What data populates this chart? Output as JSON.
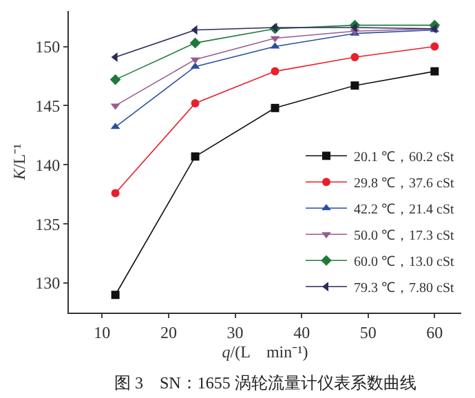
{
  "chart_data": {
    "type": "line",
    "xlabel": "q/(L　min⁻¹)",
    "ylabel": "K/L⁻¹",
    "annotations": [
      "图 3　SN：1655 涡轮流量计仪表系数曲线"
    ],
    "x": [
      12,
      24,
      36,
      48,
      60
    ],
    "xlim": [
      5,
      64
    ],
    "xticks": [
      10,
      20,
      30,
      40,
      50,
      60
    ],
    "ylim": [
      127.5,
      153
    ],
    "yticks": [
      130,
      135,
      140,
      145,
      150
    ],
    "legend": "bottom right",
    "series": [
      {
        "name": "20.1 ℃，60.2 cSt",
        "color": "#111111",
        "marker": "square",
        "values": [
          129.0,
          140.7,
          144.8,
          146.7,
          147.9
        ]
      },
      {
        "name": "29.8 ℃，37.6 cSt",
        "color": "#e8202a",
        "marker": "circle",
        "values": [
          137.6,
          145.2,
          147.9,
          149.1,
          150.0
        ]
      },
      {
        "name": "42.2 ℃，21.4 cSt",
        "color": "#2a4fa0",
        "marker": "triangle-up",
        "values": [
          143.2,
          148.3,
          150.0,
          151.1,
          151.4
        ]
      },
      {
        "name": "50.0 ℃，17.3 cSt",
        "color": "#9a5a8e",
        "marker": "triangle-down",
        "values": [
          145.0,
          148.9,
          150.7,
          151.3,
          151.5
        ]
      },
      {
        "name": "60.0 ℃，13.0 cSt",
        "color": "#1f7a3a",
        "marker": "diamond",
        "values": [
          147.2,
          150.3,
          151.5,
          151.8,
          151.8
        ]
      },
      {
        "name": "79.3 ℃，7.80 cSt",
        "color": "#2a2a5a",
        "marker": "triangle-left",
        "values": [
          149.1,
          151.4,
          151.6,
          151.6,
          151.5
        ]
      }
    ]
  }
}
